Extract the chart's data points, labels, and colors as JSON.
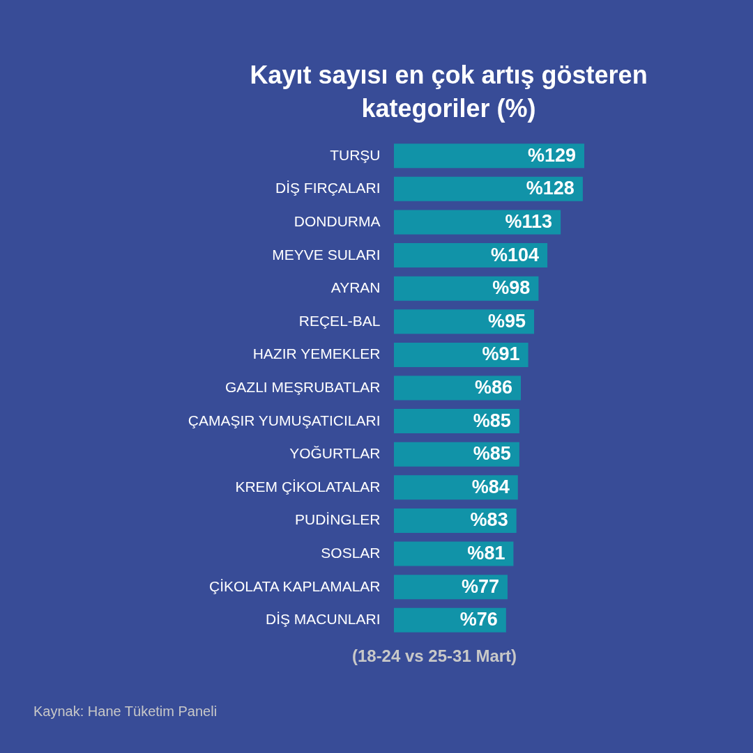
{
  "chart_data": {
    "type": "bar",
    "orientation": "horizontal",
    "title": "Kayıt sayısı en çok artış gösteren kategoriler (%)",
    "categories": [
      "TURŞU",
      "DİŞ FIRÇALARI",
      "DONDURMA",
      "MEYVE SULARI",
      "AYRAN",
      "REÇEL-BAL",
      "HAZIR YEMEKLER",
      "GAZLI MEŞRUBATLAR",
      "ÇAMAŞIR YUMUŞATICILARI",
      "YOĞURTLAR",
      "KREM ÇİKOLATALAR",
      "PUDİNGLER",
      "SOSLAR",
      "ÇİKOLATA KAPLAMALAR",
      "DİŞ MACUNLARI"
    ],
    "values": [
      129,
      128,
      113,
      104,
      98,
      95,
      91,
      86,
      85,
      85,
      84,
      83,
      81,
      77,
      76
    ],
    "value_labels": [
      "%129",
      "%128",
      "%113",
      "%104",
      "%98",
      "%95",
      "%91",
      "%86",
      "%85",
      "%85",
      "%84",
      "%83",
      "%81",
      "%77",
      "%76"
    ],
    "color": "#1193a8",
    "tick_labels": "y",
    "annotations": [
      "(18-24 vs 25-31 Mart)",
      "Kaynak: Hane Tüketim Paneli"
    ]
  }
}
